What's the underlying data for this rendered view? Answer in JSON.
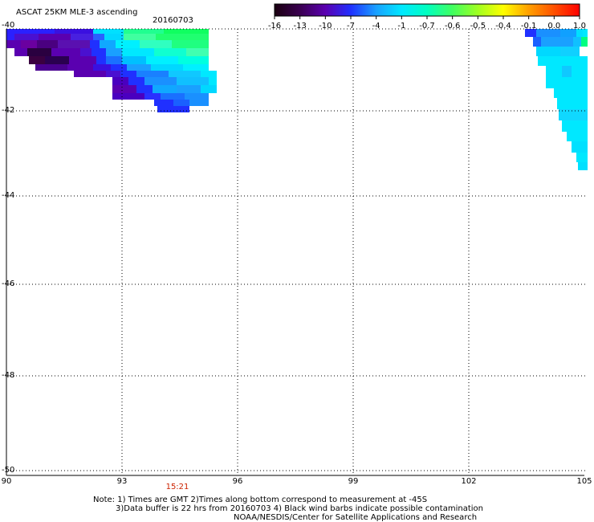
{
  "title": "ASCAT 25KM MLE-3 ascending",
  "date": "20160703",
  "colorbar": {
    "labels": [
      "-16",
      "-13",
      "-10",
      "-7",
      "-4",
      "-1",
      "-0.7",
      "-0.6",
      "-0.5",
      "-0.4",
      "-0.1",
      "0.0",
      "1.0"
    ],
    "colors": [
      "#1a0010",
      "#3a0050",
      "#5a00b0",
      "#2030ff",
      "#1aa0ff",
      "#00e8ff",
      "#00ffc0",
      "#40ff60",
      "#a0ff20",
      "#ffff00",
      "#ffa000",
      "#ff5000",
      "#ff0000"
    ]
  },
  "map": {
    "lat_labels": [
      "-40",
      "-42",
      "-44",
      "-46",
      "-48",
      "-50"
    ],
    "lon_labels": [
      "90",
      "93",
      "96",
      "99",
      "102",
      "105"
    ],
    "lat_range": [
      -50,
      -40
    ],
    "lon_range": [
      90,
      105
    ]
  },
  "time_label": "15:21",
  "notes": [
    "Note: 1) Times are GMT 2)Times along bottom correspond to measurement at -45S",
    "3)Data buffer is 22 hrs from 20160703 4) Black wind barbs indicate possible contamination",
    "NOAA/NESDIS/Center for Satellite Applications and Research"
  ]
}
